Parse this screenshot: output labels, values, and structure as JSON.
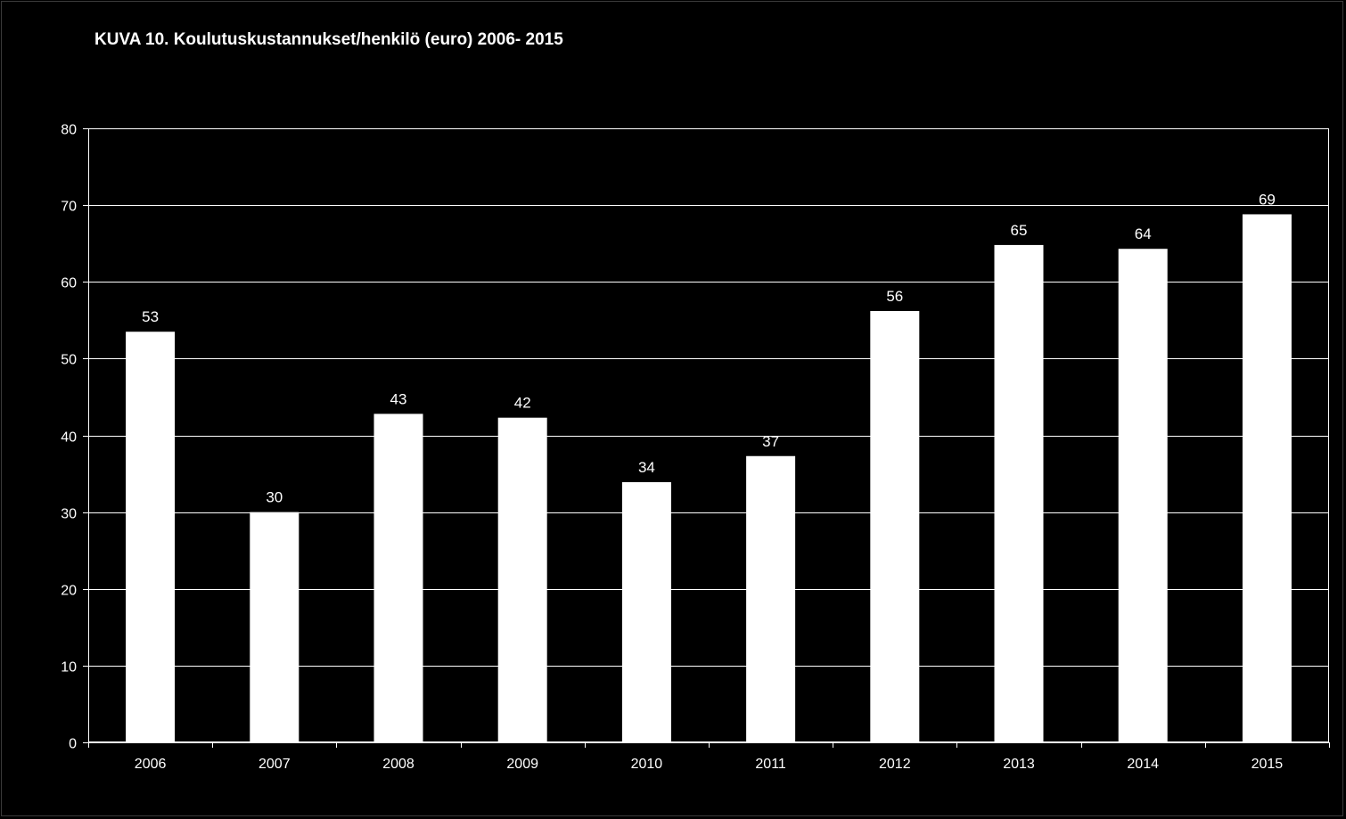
{
  "chart_data": {
    "type": "bar",
    "title": "KUVA 10.  Koulutuskustannukset/henkilö (euro) 2006- 2015",
    "xlabel": "",
    "ylabel": "",
    "categories": [
      "2006",
      "2007",
      "2008",
      "2009",
      "2010",
      "2011",
      "2012",
      "2013",
      "2014",
      "2015"
    ],
    "values": [
      53.5,
      30,
      42.8,
      42.3,
      33.9,
      37.3,
      56.2,
      64.8,
      64.3,
      68.8
    ],
    "value_labels": [
      "53",
      "30",
      "43",
      "42",
      "34",
      "37",
      "56",
      "65",
      "64",
      "69"
    ],
    "ylim": [
      0,
      80
    ],
    "yticks": [
      "0",
      "10",
      "20",
      "30",
      "40",
      "50",
      "60",
      "70",
      "80"
    ],
    "grid": true,
    "legend": "none",
    "colors": {
      "background": "#000000",
      "bar": "#ffffff",
      "axis": "#ffffff",
      "gridline": "#ffffff",
      "text": "#ffffff"
    }
  }
}
